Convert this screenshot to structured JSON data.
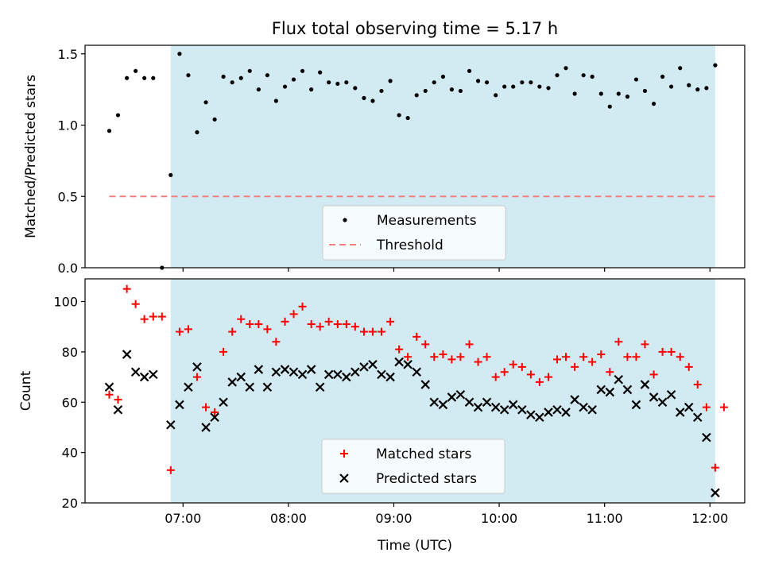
{
  "figure": {
    "title": "Flux total observing time = 5.17 h",
    "xlabel": "Time (UTC)"
  },
  "colors": {
    "shade": "#add8e6",
    "threshold": "#f08080",
    "matched": "#ff0000",
    "predicted": "#000000",
    "measurements": "#000000"
  },
  "chart_data": [
    {
      "type": "scatter",
      "panel": "top",
      "ylabel": "Matched/Predicted stars",
      "xlim": [
        6.07,
        12.33
      ],
      "ylim": [
        0.0,
        1.56
      ],
      "yticks": [
        0.0,
        0.5,
        1.0,
        1.5
      ],
      "ytick_labels": [
        "0.0",
        "0.5",
        "1.0",
        "1.5"
      ],
      "xticks": [
        7,
        8,
        9,
        10,
        11,
        12
      ],
      "xtick_labels": [],
      "shaded_span": [
        6.883,
        12.05
      ],
      "legend_position": "lower-center",
      "series": [
        {
          "name": "Measurements",
          "marker": "dot",
          "x": [
            6.3,
            6.383,
            6.467,
            6.55,
            6.633,
            6.717,
            6.8,
            6.883,
            6.967,
            7.05,
            7.133,
            7.217,
            7.3,
            7.383,
            7.467,
            7.55,
            7.633,
            7.717,
            7.8,
            7.883,
            7.967,
            8.05,
            8.133,
            8.217,
            8.3,
            8.383,
            8.467,
            8.55,
            8.633,
            8.717,
            8.8,
            8.883,
            8.967,
            9.05,
            9.133,
            9.217,
            9.3,
            9.383,
            9.467,
            9.55,
            9.633,
            9.717,
            9.8,
            9.883,
            9.967,
            10.05,
            10.133,
            10.217,
            10.3,
            10.383,
            10.467,
            10.55,
            10.633,
            10.717,
            10.8,
            10.883,
            10.967,
            11.05,
            11.133,
            11.217,
            11.3,
            11.383,
            11.467,
            11.55,
            11.633,
            11.717,
            11.8,
            11.883,
            11.967,
            12.05
          ],
          "y": [
            0.96,
            1.07,
            1.33,
            1.38,
            1.33,
            1.33,
            0.0,
            0.65,
            1.5,
            1.35,
            0.95,
            1.16,
            1.04,
            1.34,
            1.3,
            1.33,
            1.38,
            1.25,
            1.35,
            1.17,
            1.27,
            1.32,
            1.38,
            1.25,
            1.37,
            1.3,
            1.29,
            1.3,
            1.26,
            1.19,
            1.17,
            1.24,
            1.31,
            1.07,
            1.05,
            1.21,
            1.24,
            1.3,
            1.34,
            1.25,
            1.24,
            1.38,
            1.31,
            1.3,
            1.21,
            1.27,
            1.27,
            1.3,
            1.3,
            1.27,
            1.26,
            1.35,
            1.4,
            1.22,
            1.35,
            1.34,
            1.22,
            1.13,
            1.22,
            1.2,
            1.32,
            1.24,
            1.15,
            1.34,
            1.27,
            1.4,
            1.28,
            1.25,
            1.26,
            1.42
          ]
        },
        {
          "name": "Threshold",
          "style": "dashed-line",
          "x": [
            6.3,
            12.05
          ],
          "y": [
            0.5,
            0.5
          ]
        }
      ]
    },
    {
      "type": "scatter",
      "panel": "bottom",
      "ylabel": "Count",
      "xlim": [
        6.07,
        12.33
      ],
      "ylim": [
        20,
        109
      ],
      "yticks": [
        20,
        40,
        60,
        80,
        100
      ],
      "ytick_labels": [
        "20",
        "40",
        "60",
        "80",
        "100"
      ],
      "xticks": [
        7,
        8,
        9,
        10,
        11,
        12
      ],
      "xtick_labels": [
        "07:00",
        "08:00",
        "09:00",
        "10:00",
        "11:00",
        "12:00"
      ],
      "shaded_span": [
        6.883,
        12.05
      ],
      "legend_position": "lower-center",
      "series": [
        {
          "name": "Matched stars",
          "marker": "plus",
          "x": [
            6.3,
            6.383,
            6.467,
            6.55,
            6.633,
            6.717,
            6.8,
            6.883,
            6.967,
            7.05,
            7.133,
            7.217,
            7.3,
            7.383,
            7.467,
            7.55,
            7.633,
            7.717,
            7.8,
            7.883,
            7.967,
            8.05,
            8.133,
            8.217,
            8.3,
            8.383,
            8.467,
            8.55,
            8.633,
            8.717,
            8.8,
            8.883,
            8.967,
            9.05,
            9.133,
            9.217,
            9.3,
            9.383,
            9.467,
            9.55,
            9.633,
            9.717,
            9.8,
            9.883,
            9.967,
            10.05,
            10.133,
            10.217,
            10.3,
            10.383,
            10.467,
            10.55,
            10.633,
            10.717,
            10.8,
            10.883,
            10.967,
            11.05,
            11.133,
            11.217,
            11.3,
            11.383,
            11.467,
            11.55,
            11.633,
            11.717,
            11.8,
            11.883,
            11.967,
            12.05,
            12.133
          ],
          "y": [
            63,
            61,
            105,
            99,
            93,
            94,
            94,
            33,
            88,
            89,
            70,
            58,
            56,
            80,
            88,
            93,
            91,
            91,
            89,
            84,
            92,
            95,
            98,
            91,
            90,
            92,
            91,
            91,
            90,
            88,
            88,
            88,
            92,
            81,
            78,
            86,
            83,
            78,
            79,
            77,
            78,
            83,
            76,
            78,
            70,
            72,
            75,
            74,
            71,
            68,
            70,
            77,
            78,
            74,
            78,
            76,
            79,
            72,
            84,
            78,
            78,
            83,
            71,
            80,
            80,
            78,
            74,
            67,
            58,
            34,
            58
          ],
          "x_note": ""
        },
        {
          "name": "Predicted stars",
          "marker": "x",
          "x": [
            6.3,
            6.383,
            6.467,
            6.55,
            6.633,
            6.717,
            6.883,
            6.967,
            7.05,
            7.133,
            7.217,
            7.3,
            7.383,
            7.467,
            7.55,
            7.633,
            7.717,
            7.8,
            7.883,
            7.967,
            8.05,
            8.133,
            8.217,
            8.3,
            8.383,
            8.467,
            8.55,
            8.633,
            8.717,
            8.8,
            8.883,
            8.967,
            9.05,
            9.133,
            9.217,
            9.3,
            9.383,
            9.467,
            9.55,
            9.633,
            9.717,
            9.8,
            9.883,
            9.967,
            10.05,
            10.133,
            10.217,
            10.3,
            10.383,
            10.467,
            10.55,
            10.633,
            10.717,
            10.8,
            10.883,
            10.967,
            11.05,
            11.133,
            11.217,
            11.3,
            11.383,
            11.467,
            11.55,
            11.633,
            11.717,
            11.8,
            11.883,
            11.967,
            12.05
          ],
          "y": [
            66,
            57,
            79,
            72,
            70,
            71,
            51,
            59,
            66,
            74,
            50,
            54,
            60,
            68,
            70,
            66,
            73,
            66,
            72,
            73,
            72,
            71,
            73,
            66,
            71,
            71,
            70,
            72,
            74,
            75,
            71,
            70,
            76,
            75,
            72,
            67,
            60,
            59,
            62,
            63,
            60,
            58,
            60,
            58,
            57,
            59,
            57,
            55,
            54,
            56,
            57,
            56,
            61,
            58,
            57,
            65,
            64,
            69,
            65,
            59,
            67,
            62,
            60,
            63,
            56,
            58,
            54,
            46,
            24
          ]
        }
      ]
    }
  ]
}
